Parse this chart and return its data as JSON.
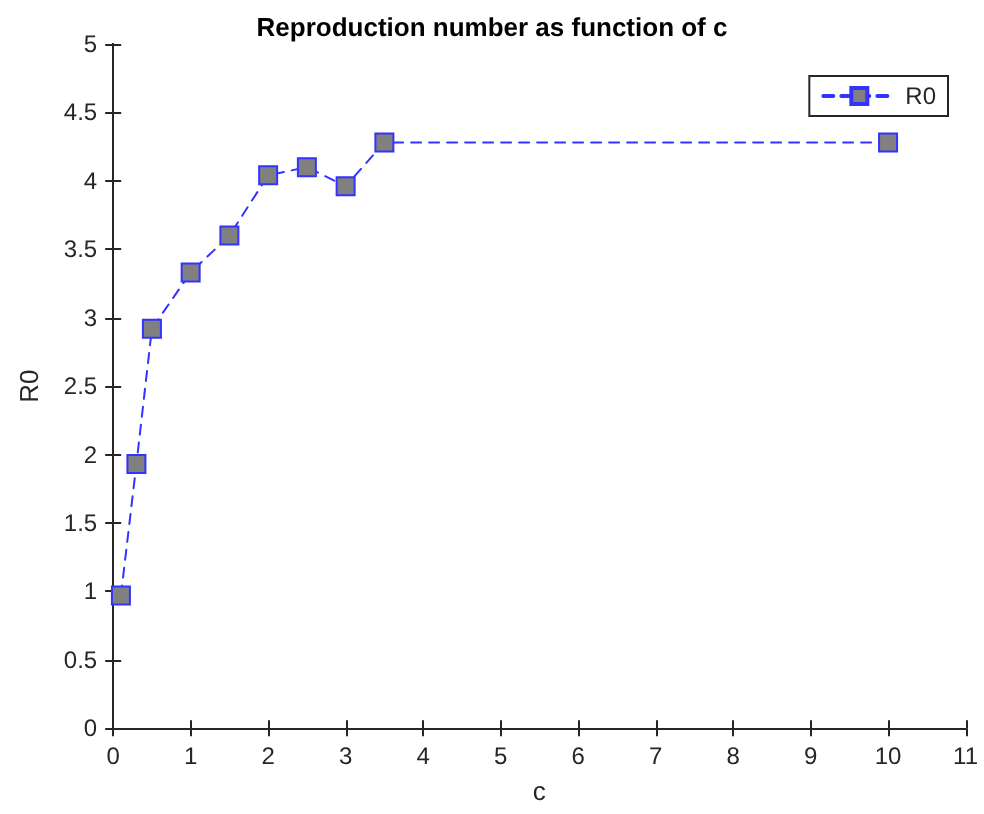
{
  "chart_data": {
    "type": "line",
    "title": "Reproduction number as function of c",
    "xlabel": "c",
    "ylabel": "R0",
    "x": [
      0.1,
      0.3,
      0.5,
      1,
      1.5,
      2,
      2.5,
      3,
      3.5,
      10
    ],
    "series": [
      {
        "name": "R0",
        "color": "#3333ff",
        "values": [
          0.97,
          1.93,
          2.92,
          3.33,
          3.6,
          4.04,
          4.1,
          3.96,
          4.28,
          4.28
        ]
      }
    ],
    "xlim": [
      0,
      11
    ],
    "xticks": [
      0,
      1,
      2,
      3,
      4,
      5,
      6,
      7,
      8,
      9,
      10,
      11
    ],
    "ylim": [
      0,
      5
    ],
    "yticks": [
      0,
      0.5,
      1,
      1.5,
      2,
      2.5,
      3,
      3.5,
      4,
      4.5,
      5
    ],
    "grid": false,
    "legend": "top right",
    "marker": "square",
    "line_style": "dashed"
  }
}
